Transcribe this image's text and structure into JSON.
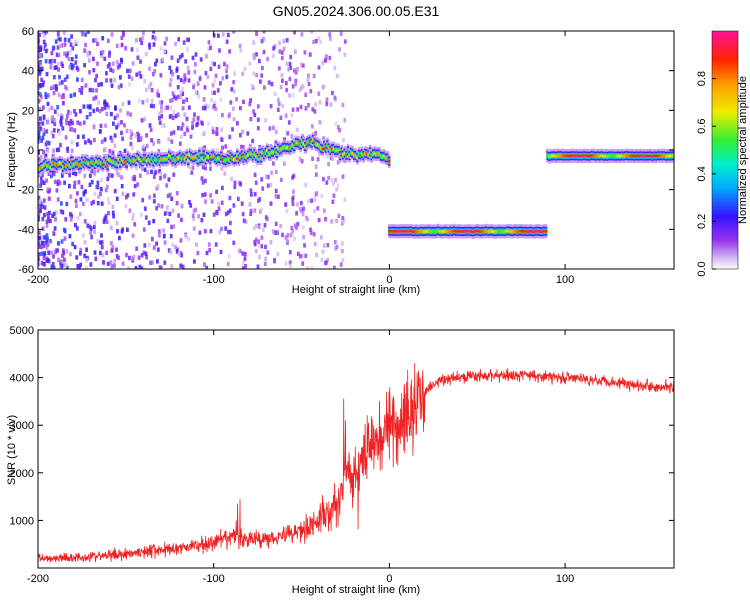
{
  "title": "GN05.2024.306.00.05.E31",
  "colors": {
    "snr_line": "#ee2222",
    "axis": "#000000"
  },
  "chart_data": [
    {
      "type": "heatmap",
      "xlabel": "Height of straight line (km)",
      "ylabel": "Frequency (Hz)",
      "xlim": [
        -200,
        162
      ],
      "ylim": [
        -60,
        60
      ],
      "xticks": [
        -200,
        -100,
        0,
        100
      ],
      "yticks": [
        -60,
        -40,
        -20,
        0,
        20,
        40,
        60
      ],
      "colorbar": {
        "label": "Normalized spectral amplitude",
        "range": [
          0,
          1
        ],
        "ticks": [
          "0.0",
          "0.2",
          "0.4",
          "0.6",
          "0.8"
        ],
        "colormap": "rainbow"
      },
      "segments": [
        {
          "x": [
            -200,
            -160,
            -120,
            -90,
            -70,
            -55,
            -45,
            -30,
            -20,
            -10,
            0
          ],
          "y": [
            -8,
            -6,
            -4,
            -4,
            -2,
            2,
            4,
            -1,
            -3,
            -2,
            -4
          ]
        },
        {
          "x": [
            0,
            90
          ],
          "y": [
            -41,
            -41
          ]
        },
        {
          "x": [
            90,
            162
          ],
          "y": [
            -3,
            -3
          ]
        }
      ]
    },
    {
      "type": "line",
      "xlabel": "Height of straight line (km)",
      "ylabel": "SNR (10 * v/v)",
      "xlim": [
        -200,
        162
      ],
      "ylim": [
        0,
        5000
      ],
      "xticks": [
        -200,
        -100,
        0,
        100
      ],
      "yticks": [
        1000,
        2000,
        3000,
        4000,
        5000
      ],
      "x": [
        -200,
        -180,
        -160,
        -140,
        -120,
        -100,
        -90,
        -80,
        -70,
        -60,
        -50,
        -40,
        -30,
        -25,
        -20,
        -15,
        -10,
        -5,
        0,
        5,
        10,
        15,
        20,
        25,
        30,
        40,
        60,
        80,
        100,
        120,
        140,
        162
      ],
      "values": [
        200,
        220,
        260,
        350,
        420,
        520,
        650,
        600,
        620,
        700,
        800,
        1000,
        1300,
        2000,
        1900,
        2300,
        2600,
        2800,
        3000,
        3000,
        3200,
        3400,
        3700,
        3850,
        3950,
        4000,
        4050,
        4050,
        4000,
        3950,
        3850,
        3800
      ]
    }
  ]
}
